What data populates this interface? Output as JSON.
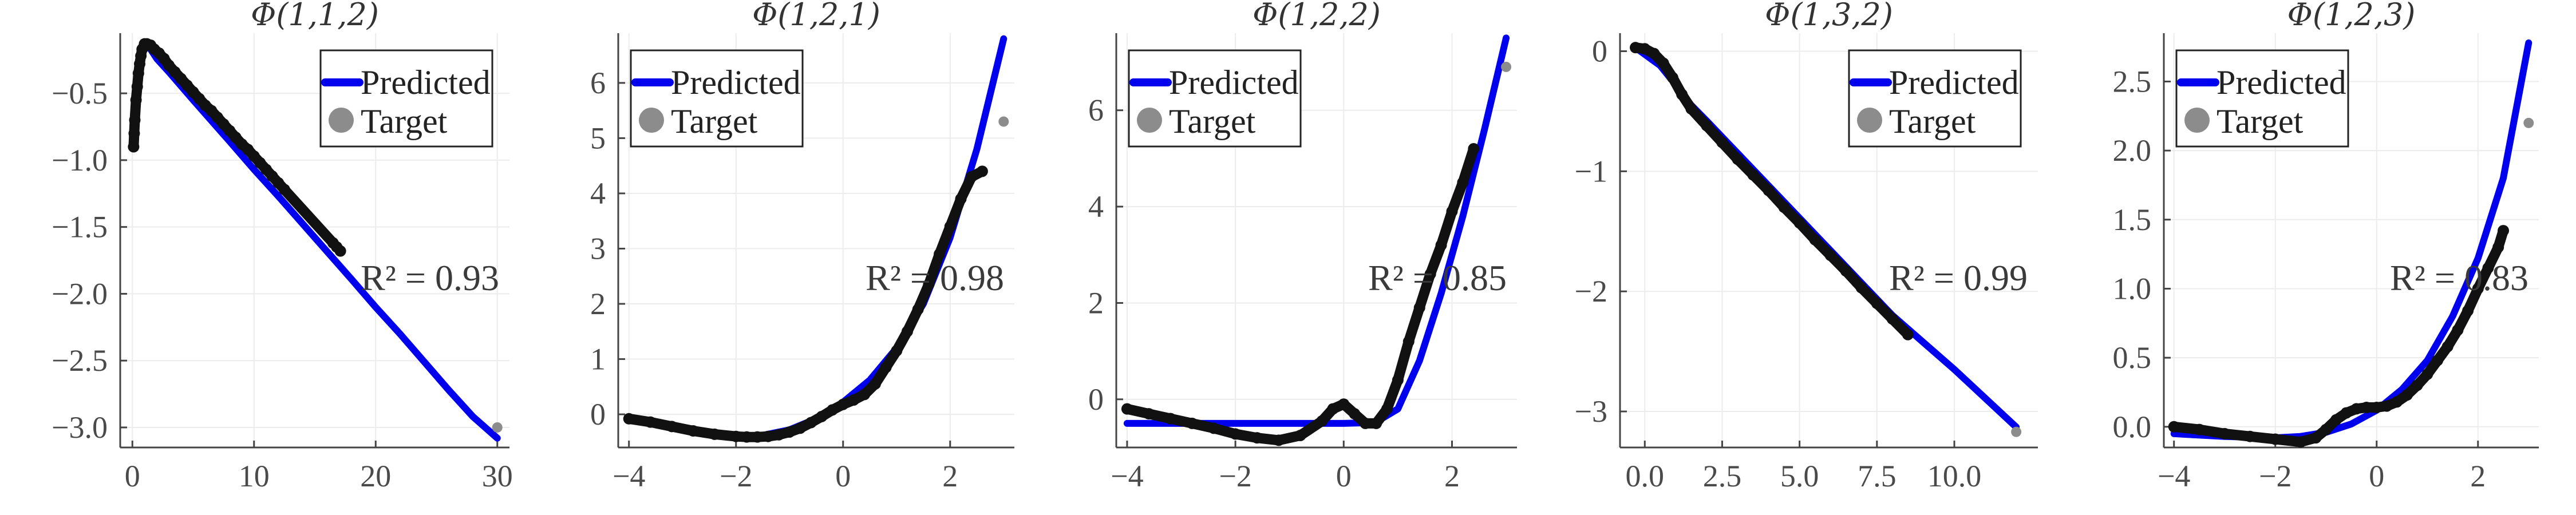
{
  "colors": {
    "predicted": "#0000ee",
    "target_main": "#111111",
    "target_outlier": "#8c8c8c",
    "axis": "#444444",
    "grid": "#ececec"
  },
  "chart_data": [
    {
      "type": "scatter",
      "title": "Φ(1,1,2)",
      "xlim": [
        -1,
        31
      ],
      "ylim": [
        -3.15,
        -0.05
      ],
      "xticks": [
        0,
        10,
        20,
        30
      ],
      "xtick_labels": [
        "0",
        "10",
        "20",
        "30"
      ],
      "yticks": [
        -0.5,
        -1.0,
        -1.5,
        -2.0,
        -2.5,
        -3.0
      ],
      "ytick_labels": [
        "−0.5",
        "−1.0",
        "−1.5",
        "−2.0",
        "−2.5",
        "−3.0"
      ],
      "legend": {
        "predicted": "Predicted",
        "target": "Target",
        "position": "top-right"
      },
      "annotation": "R² = 0.93",
      "predicted": {
        "x": [
          0.0,
          0.2,
          0.5,
          0.8,
          1.0,
          1.5,
          2.0,
          3.0,
          5.0,
          8.0,
          10.0,
          12.0,
          15.0,
          18.0,
          20.0,
          22.0,
          24.0,
          26.0,
          28.0,
          30.0
        ],
        "y": [
          -0.9,
          -0.6,
          -0.38,
          -0.2,
          -0.14,
          -0.17,
          -0.24,
          -0.34,
          -0.55,
          -0.86,
          -1.07,
          -1.27,
          -1.58,
          -1.89,
          -2.1,
          -2.3,
          -2.51,
          -2.72,
          -2.92,
          -3.08
        ]
      },
      "target": {
        "x": [
          0.1,
          0.15,
          0.2,
          0.3,
          0.4,
          0.5,
          0.6,
          0.7,
          0.8,
          1.0,
          1.2,
          1.5,
          1.8,
          2.2,
          2.6,
          3.0,
          3.5,
          4.0,
          4.5,
          5.0,
          5.5,
          6.0,
          6.5,
          7.0,
          7.5,
          8.0,
          8.5,
          9.0,
          9.5,
          10.0,
          10.5,
          11.0,
          11.5,
          12.0,
          12.5,
          16.5,
          16.8,
          17.1
        ],
        "y": [
          -0.9,
          -0.8,
          -0.7,
          -0.55,
          -0.45,
          -0.35,
          -0.28,
          -0.22,
          -0.17,
          -0.13,
          -0.13,
          -0.14,
          -0.17,
          -0.2,
          -0.24,
          -0.29,
          -0.34,
          -0.39,
          -0.44,
          -0.49,
          -0.54,
          -0.59,
          -0.63,
          -0.68,
          -0.73,
          -0.78,
          -0.83,
          -0.88,
          -0.92,
          -0.97,
          -1.02,
          -1.07,
          -1.12,
          -1.17,
          -1.22,
          -1.62,
          -1.65,
          -1.68
        ]
      },
      "outliers": {
        "x": [
          30.0
        ],
        "y": [
          -3.0
        ]
      }
    },
    {
      "type": "scatter",
      "title": "Φ(1,2,1)",
      "xlim": [
        -4.2,
        3.2
      ],
      "ylim": [
        -0.6,
        6.9
      ],
      "xticks": [
        -4,
        -2,
        0,
        2
      ],
      "xtick_labels": [
        "−4",
        "−2",
        "0",
        "2"
      ],
      "yticks": [
        0,
        1,
        2,
        3,
        4,
        5,
        6
      ],
      "ytick_labels": [
        "0",
        "1",
        "2",
        "3",
        "4",
        "5",
        "6"
      ],
      "legend": {
        "predicted": "Predicted",
        "target": "Target",
        "position": "top-left"
      },
      "annotation": "R² = 0.98",
      "predicted": {
        "x": [
          -4.0,
          -3.5,
          -3.0,
          -2.5,
          -2.0,
          -1.5,
          -1.0,
          -0.5,
          0.0,
          0.5,
          1.0,
          1.5,
          2.0,
          2.5,
          3.0
        ],
        "y": [
          -0.05,
          -0.15,
          -0.27,
          -0.35,
          -0.4,
          -0.38,
          -0.28,
          -0.08,
          0.22,
          0.62,
          1.2,
          2.0,
          3.2,
          4.8,
          6.8
        ]
      },
      "target": {
        "x": [
          -4.0,
          -3.6,
          -3.2,
          -2.8,
          -2.4,
          -2.0,
          -1.8,
          -1.6,
          -1.4,
          -1.2,
          -1.0,
          -0.8,
          -0.6,
          -0.4,
          -0.2,
          0.0,
          0.2,
          0.4,
          0.6,
          0.8,
          1.0,
          1.2,
          1.4,
          1.6,
          1.8,
          2.0,
          2.2,
          2.4,
          2.6
        ],
        "y": [
          -0.08,
          -0.14,
          -0.22,
          -0.3,
          -0.36,
          -0.4,
          -0.41,
          -0.41,
          -0.4,
          -0.37,
          -0.32,
          -0.25,
          -0.15,
          -0.04,
          0.08,
          0.18,
          0.26,
          0.36,
          0.55,
          0.85,
          1.15,
          1.5,
          1.9,
          2.35,
          2.9,
          3.4,
          3.9,
          4.3,
          4.4
        ]
      },
      "outliers": {
        "x": [
          3.0
        ],
        "y": [
          5.3
        ]
      }
    },
    {
      "type": "scatter",
      "title": "Φ(1,2,2)",
      "xlim": [
        -4.2,
        3.2
      ],
      "ylim": [
        -1.0,
        7.6
      ],
      "xticks": [
        -4,
        -2,
        0,
        2
      ],
      "xtick_labels": [
        "−4",
        "−2",
        "0",
        "2"
      ],
      "yticks": [
        0,
        2,
        4,
        6
      ],
      "ytick_labels": [
        "0",
        "2",
        "4",
        "6"
      ],
      "legend": {
        "predicted": "Predicted",
        "target": "Target",
        "position": "top-left"
      },
      "annotation": "R² = 0.85",
      "predicted": {
        "x": [
          -4.0,
          -2.0,
          0.0,
          0.3,
          0.6,
          1.0,
          1.4,
          1.8,
          2.2,
          2.6,
          3.0
        ],
        "y": [
          -0.5,
          -0.5,
          -0.5,
          -0.49,
          -0.47,
          -0.2,
          0.8,
          2.2,
          3.8,
          5.6,
          7.5
        ]
      },
      "target": {
        "x": [
          -4.0,
          -3.6,
          -3.2,
          -2.8,
          -2.4,
          -2.0,
          -1.6,
          -1.2,
          -0.8,
          -0.4,
          -0.2,
          0.0,
          0.2,
          0.4,
          0.6,
          0.8,
          1.0,
          1.2,
          1.4,
          1.6,
          1.8,
          2.0,
          2.2,
          2.4
        ],
        "y": [
          -0.2,
          -0.3,
          -0.4,
          -0.5,
          -0.6,
          -0.72,
          -0.8,
          -0.85,
          -0.75,
          -0.45,
          -0.2,
          -0.1,
          -0.3,
          -0.5,
          -0.5,
          -0.2,
          0.4,
          1.2,
          1.9,
          2.6,
          3.2,
          3.9,
          4.5,
          5.2
        ]
      },
      "outliers": {
        "x": [
          3.0
        ],
        "y": [
          6.9
        ]
      }
    },
    {
      "type": "scatter",
      "title": "Φ(1,3,2)",
      "xlim": [
        -0.8,
        12.7
      ],
      "ylim": [
        -3.3,
        0.15
      ],
      "xticks": [
        0,
        2.5,
        5,
        7.5,
        10
      ],
      "xtick_labels": [
        "0.0",
        "2.5",
        "5.0",
        "7.5",
        "10.0"
      ],
      "yticks": [
        0,
        -1,
        -2,
        -3
      ],
      "ytick_labels": [
        "0",
        "−1",
        "−2",
        "−3"
      ],
      "legend": {
        "predicted": "Predicted",
        "target": "Target",
        "position": "top-right"
      },
      "annotation": "R² = 0.99",
      "predicted": {
        "x": [
          -0.3,
          0.5,
          1.0,
          1.5,
          2.0,
          4.0,
          6.0,
          8.0,
          10.0,
          12.0
        ],
        "y": [
          0.03,
          -0.12,
          -0.28,
          -0.45,
          -0.58,
          -1.12,
          -1.66,
          -2.2,
          -2.65,
          -3.13
        ]
      },
      "target": {
        "x": [
          -0.3,
          0.0,
          0.3,
          0.6,
          0.9,
          1.2,
          1.5,
          2.0,
          2.5,
          3.0,
          3.5,
          4.0,
          4.5,
          5.0,
          5.5,
          6.0,
          6.5,
          7.0,
          7.5,
          8.0,
          8.5
        ],
        "y": [
          0.03,
          0.02,
          -0.02,
          -0.1,
          -0.22,
          -0.36,
          -0.48,
          -0.62,
          -0.76,
          -0.9,
          -1.03,
          -1.16,
          -1.3,
          -1.43,
          -1.57,
          -1.7,
          -1.83,
          -1.97,
          -2.1,
          -2.23,
          -2.36
        ]
      },
      "outliers": {
        "x": [
          12.0
        ],
        "y": [
          -3.17
        ]
      }
    },
    {
      "type": "scatter",
      "title": "Φ(1,2,3)",
      "xlim": [
        -4.2,
        3.2
      ],
      "ylim": [
        -0.15,
        2.85
      ],
      "xticks": [
        -4,
        -2,
        0,
        2
      ],
      "xtick_labels": [
        "−4",
        "−2",
        "0",
        "2"
      ],
      "yticks": [
        0,
        0.5,
        1.0,
        1.5,
        2.0,
        2.5
      ],
      "ytick_labels": [
        "0.0",
        "0.5",
        "1.0",
        "1.5",
        "2.0",
        "2.5"
      ],
      "legend": {
        "predicted": "Predicted",
        "target": "Target",
        "position": "top-left"
      },
      "annotation": "R² = 0.83",
      "predicted": {
        "x": [
          -4.0,
          -3.0,
          -2.0,
          -1.5,
          -1.0,
          -0.5,
          0.0,
          0.5,
          1.0,
          1.5,
          2.0,
          2.5,
          3.0
        ],
        "y": [
          -0.05,
          -0.07,
          -0.08,
          -0.07,
          -0.04,
          0.02,
          0.12,
          0.27,
          0.48,
          0.8,
          1.22,
          1.8,
          2.78
        ]
      },
      "target": {
        "x": [
          -4.0,
          -3.5,
          -3.0,
          -2.5,
          -2.0,
          -1.5,
          -1.2,
          -1.0,
          -0.8,
          -0.6,
          -0.4,
          -0.2,
          0.0,
          0.2,
          0.4,
          0.6,
          0.8,
          1.0,
          1.2,
          1.4,
          1.6,
          1.8,
          2.0,
          2.2,
          2.4,
          2.5
        ],
        "y": [
          0.0,
          -0.02,
          -0.05,
          -0.07,
          -0.09,
          -0.11,
          -0.08,
          -0.02,
          0.05,
          0.1,
          0.13,
          0.14,
          0.14,
          0.15,
          0.18,
          0.23,
          0.3,
          0.38,
          0.48,
          0.58,
          0.7,
          0.84,
          1.0,
          1.15,
          1.3,
          1.42
        ]
      },
      "outliers": {
        "x": [
          3.0
        ],
        "y": [
          2.2
        ]
      }
    }
  ]
}
